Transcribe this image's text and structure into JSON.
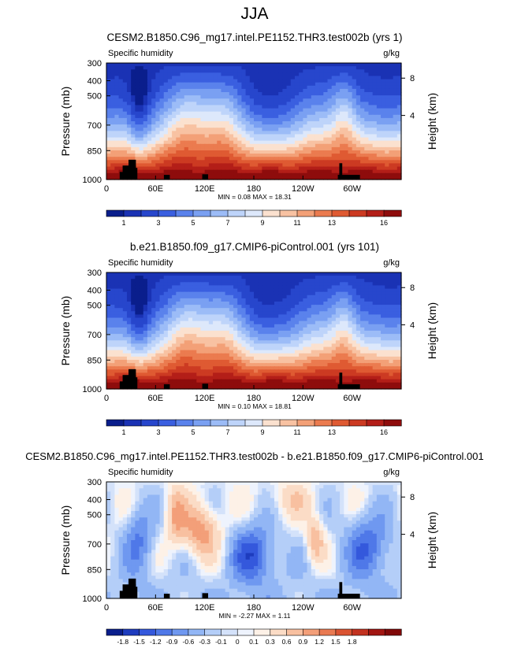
{
  "figure_title": "JJA",
  "colors": {
    "sequential": [
      "#0a1e8c",
      "#1a32b4",
      "#2746cc",
      "#3a5fe0",
      "#5a82ec",
      "#7aa0f2",
      "#9cbcf7",
      "#bed4fa",
      "#dde8fb",
      "#fbe1cf",
      "#f8c2a2",
      "#f3a077",
      "#eb7b4f",
      "#df5a32",
      "#cc3a22",
      "#b31e18",
      "#8e0c0c"
    ],
    "diverging": [
      "#0a1e8c",
      "#1e3cbe",
      "#3458dc",
      "#4f78e8",
      "#6f98f0",
      "#92b6f5",
      "#b4cef8",
      "#d4e2fa",
      "#eef3fd",
      "#fdf1e7",
      "#fbdcc6",
      "#f8c0a0",
      "#f39f79",
      "#e97a52",
      "#da5332",
      "#c23220",
      "#a11511",
      "#800808"
    ],
    "topography": "#000000"
  },
  "chart_data": [
    {
      "type": "heatmap",
      "name": "panel-top",
      "title": "CESM2.B1850.C96_mg17.intel.PE1152.THR3.test002b (yrs 1)",
      "left_label": "Specific humidity",
      "right_label": "g/kg",
      "ylabel": "Pressure (mb)",
      "ylabel_right": "Height (km)",
      "yticks": [
        "300",
        "400",
        "500",
        "700",
        "850",
        "1000"
      ],
      "yticks_right": [
        "8",
        "4"
      ],
      "xticks": [
        "0",
        "60E",
        "120E",
        "180",
        "120W",
        "60W"
      ],
      "stats": "MIN =  0.08  MAX =  18.31",
      "colorbar_labels": [
        "1",
        "3",
        "5",
        "7",
        "9",
        "11",
        "13",
        "16"
      ],
      "levels": [
        0.5,
        1,
        2,
        3,
        4,
        5,
        6,
        7,
        8,
        9,
        10,
        11,
        12,
        13,
        14,
        15,
        16
      ],
      "stats_values": {
        "min": 0.08,
        "max": 18.31
      },
      "field": "humidity",
      "seed": 11
    },
    {
      "type": "heatmap",
      "name": "panel-middle",
      "title": "b.e21.B1850.f09_g17.CMIP6-piControl.001 (yrs 101)",
      "left_label": "Specific humidity",
      "right_label": "g/kg",
      "ylabel": "Pressure (mb)",
      "ylabel_right": "Height (km)",
      "yticks": [
        "300",
        "400",
        "500",
        "700",
        "850",
        "1000"
      ],
      "yticks_right": [
        "8",
        "4"
      ],
      "xticks": [
        "0",
        "60E",
        "120E",
        "180",
        "120W",
        "60W"
      ],
      "stats": "MIN =  0.10  MAX =  18.81",
      "colorbar_labels": [
        "1",
        "3",
        "5",
        "7",
        "9",
        "11",
        "13",
        "16"
      ],
      "levels": [
        0.5,
        1,
        2,
        3,
        4,
        5,
        6,
        7,
        8,
        9,
        10,
        11,
        12,
        13,
        14,
        15,
        16
      ],
      "stats_values": {
        "min": 0.1,
        "max": 18.81
      },
      "field": "humidity",
      "seed": 23
    },
    {
      "type": "heatmap",
      "name": "panel-difference",
      "title": "CESM2.B1850.C96_mg17.intel.PE1152.THR3.test002b - b.e21.B1850.f09_g17.CMIP6-piControl.001",
      "left_label": "Specific humidity",
      "right_label": "g/kg",
      "ylabel": "Pressure (mb)",
      "ylabel_right": "Height (km)",
      "yticks": [
        "300",
        "400",
        "500",
        "700",
        "850",
        "1000"
      ],
      "yticks_right": [
        "8",
        "4"
      ],
      "xticks": [
        "0",
        "60E",
        "120E",
        "180",
        "120W",
        "60W"
      ],
      "stats": "MIN =  -2.27  MAX =  1.11",
      "colorbar_labels": [
        "-1.8",
        "-1.5",
        "-1.2",
        "-0.9",
        "-0.6",
        "-0.3",
        "-0.1",
        "0",
        "0.1",
        "0.3",
        "0.6",
        "0.9",
        "1.2",
        "1.5",
        "1.8"
      ],
      "levels": [
        -1.8,
        -1.5,
        -1.2,
        -0.9,
        -0.6,
        -0.3,
        -0.1,
        0,
        0.1,
        0.3,
        0.6,
        0.9,
        1.2,
        1.5,
        1.8
      ],
      "stats_values": {
        "min": -2.27,
        "max": 1.11
      },
      "field": "difference",
      "seed": 37
    }
  ]
}
